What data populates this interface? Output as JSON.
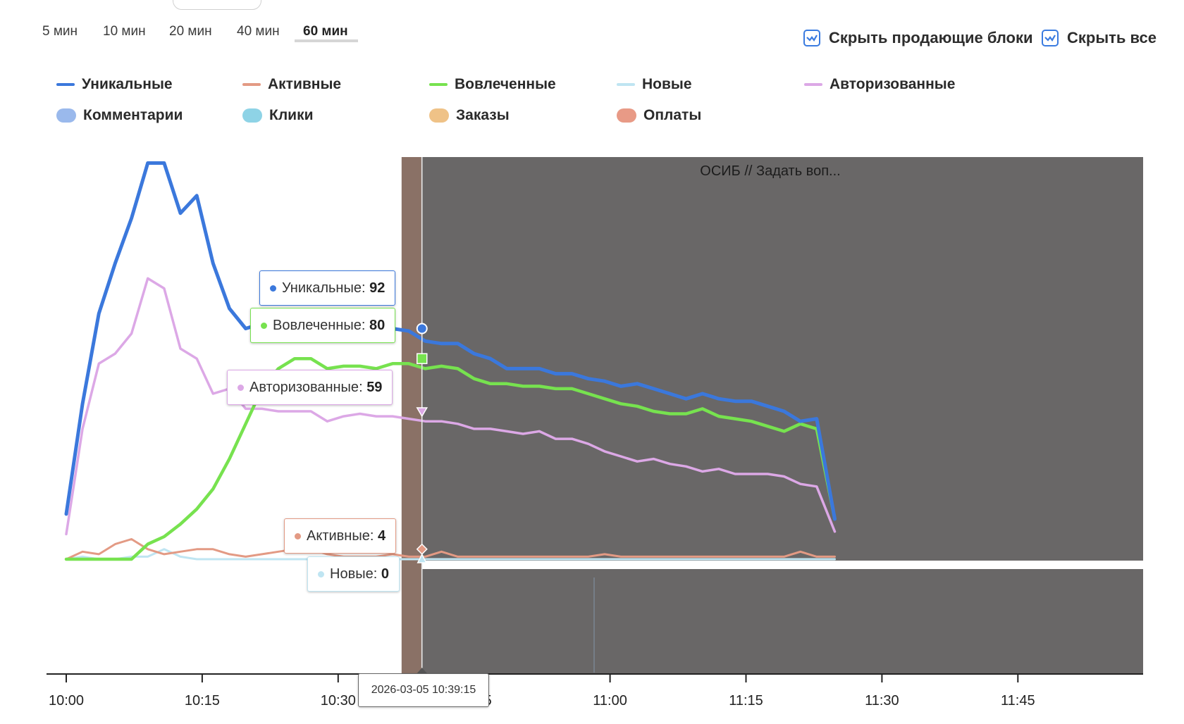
{
  "range_tabs": [
    {
      "label": "5 мин",
      "active": false
    },
    {
      "label": "10 мин",
      "active": false
    },
    {
      "label": "20 мин",
      "active": false
    },
    {
      "label": "40 мин",
      "active": false
    },
    {
      "label": "60 мин",
      "active": true
    }
  ],
  "toggles": {
    "hide_selling": "Скрыть продающие блоки",
    "hide_all": "Скрыть все"
  },
  "legend": [
    {
      "label": "Уникальные",
      "color": "#3b78dc",
      "kind": "line"
    },
    {
      "label": "Активные",
      "color": "#e39a84",
      "kind": "line"
    },
    {
      "label": "Вовлеченные",
      "color": "#77e24f",
      "kind": "line"
    },
    {
      "label": "Новые",
      "color": "#bfe5f2",
      "kind": "line"
    },
    {
      "label": "Авторизованные",
      "color": "#dca8e6",
      "kind": "line"
    },
    {
      "label": "Комментарии",
      "color": "#9ab9ec",
      "kind": "dot"
    },
    {
      "label": "Клики",
      "color": "#8ed3e6",
      "kind": "dot"
    },
    {
      "label": "Заказы",
      "color": "#efc287",
      "kind": "dot"
    },
    {
      "label": "Оплаты",
      "color": "#e89a86",
      "kind": "dot"
    }
  ],
  "block": {
    "label": "ОСИБ // Задать воп..."
  },
  "tooltips": [
    {
      "series": "Уникальные",
      "value": "92",
      "color": "#3b78dc"
    },
    {
      "series": "Вовлеченные",
      "value": "80",
      "color": "#77e24f"
    },
    {
      "series": "Авторизованные",
      "value": "59",
      "color": "#dca8e6"
    },
    {
      "series": "Активные",
      "value": "4",
      "color": "#e39a84"
    },
    {
      "series": "Новые",
      "value": "0",
      "color": "#bfe5f2"
    }
  ],
  "x_tooltip": "2026-03-05 10:39:15",
  "chart_data": {
    "type": "line",
    "x_tick_labels": [
      "10:00",
      "10:15",
      "10:30",
      "10:45",
      "11:00",
      "11:15",
      "11:30",
      "11:45"
    ],
    "x": [
      0,
      1.8,
      3.6,
      5.4,
      7.2,
      9,
      10.8,
      12.6,
      14.4,
      16.2,
      18,
      19.8,
      21.6,
      23.4,
      25.2,
      27,
      28.8,
      30.6,
      32.4,
      34.2,
      36,
      37.8,
      39.6,
      41.4,
      43.2,
      45,
      46.8,
      48.6,
      50.4,
      52.2,
      54,
      55.8,
      57.6,
      59.4,
      61.2,
      63,
      64.8,
      66.6,
      68.4,
      70.2,
      72,
      73.8,
      75.6,
      77.4,
      79.2,
      81,
      82.8,
      84.8
    ],
    "series": [
      {
        "name": "Уникальные",
        "values": [
          18,
          62,
          98,
          118,
          136,
          158,
          158,
          138,
          145,
          118,
          100,
          92,
          94,
          95,
          93,
          92,
          88,
          92,
          89,
          88,
          92,
          91,
          87,
          86,
          86,
          82,
          80,
          76,
          76,
          76,
          74,
          74,
          72,
          71,
          69,
          70,
          68,
          66,
          64,
          66,
          64,
          63,
          63,
          61,
          59,
          55,
          56,
          16
        ]
      },
      {
        "name": "Вовлеченные",
        "values": [
          0,
          0,
          0,
          0,
          0,
          6,
          9,
          14,
          20,
          28,
          40,
          54,
          68,
          76,
          80,
          80,
          76,
          77,
          77,
          76,
          78,
          78,
          76,
          77,
          76,
          72,
          70,
          70,
          69,
          69,
          68,
          68,
          66,
          64,
          62,
          61,
          59,
          58,
          58,
          60,
          57,
          56,
          55,
          53,
          51,
          54,
          52,
          16
        ]
      },
      {
        "name": "Авторизованные",
        "values": [
          10,
          52,
          78,
          82,
          90,
          112,
          108,
          84,
          80,
          66,
          68,
          60,
          60,
          59,
          59,
          59,
          55,
          57,
          58,
          57,
          57,
          56,
          55,
          55,
          54,
          52,
          52,
          51,
          50,
          51,
          48,
          48,
          46,
          43,
          41,
          39,
          40,
          38,
          37,
          35,
          36,
          34,
          34,
          34,
          33,
          30,
          29,
          11
        ]
      },
      {
        "name": "Активные",
        "values": [
          0,
          3,
          2,
          6,
          8,
          4,
          2,
          3,
          4,
          4,
          2,
          1,
          2,
          3,
          4,
          4,
          2,
          1,
          1,
          1,
          2,
          1,
          1,
          3,
          1,
          1,
          1,
          1,
          1,
          1,
          1,
          1,
          1,
          2,
          1,
          1,
          1,
          1,
          1,
          1,
          1,
          1,
          1,
          1,
          1,
          3,
          1,
          1
        ]
      },
      {
        "name": "Новые",
        "values": [
          0,
          1,
          0,
          0,
          1,
          1,
          4,
          1,
          0,
          0,
          0,
          0,
          0,
          0,
          0,
          0,
          0,
          0,
          0,
          0,
          0,
          0,
          0,
          0,
          0,
          0,
          0,
          0,
          0,
          0,
          0,
          0,
          0,
          0,
          0,
          0,
          0,
          0,
          0,
          0,
          0,
          0,
          0,
          0,
          0,
          0,
          0,
          0
        ]
      }
    ],
    "ylim": [
      0,
      160
    ],
    "xlim": [
      0,
      84.8
    ],
    "block_start_minutes": 37,
    "cursor_minutes": 39.25,
    "grid": false
  }
}
